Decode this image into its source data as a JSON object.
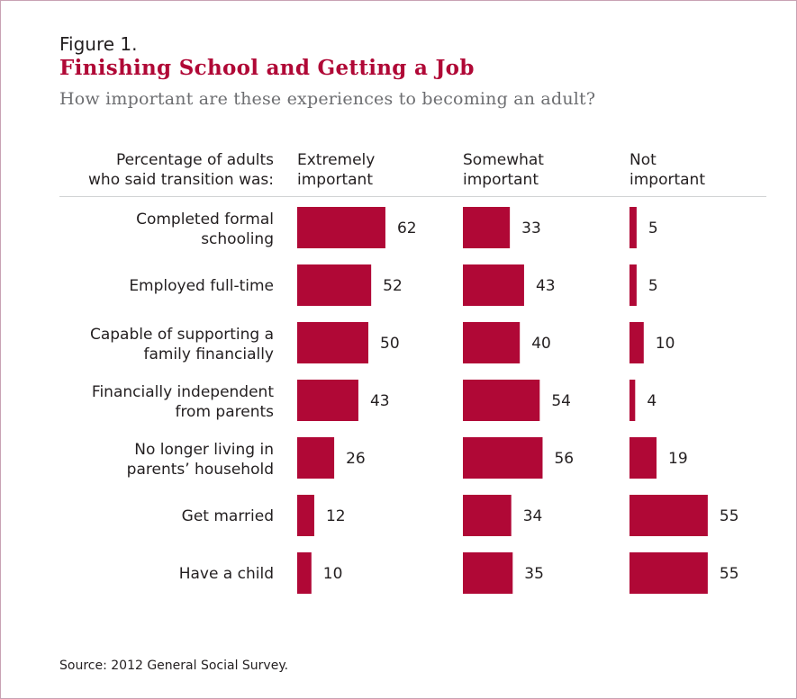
{
  "figure_label": "Figure 1.",
  "title": "Finishing School and Getting a Job",
  "subtitle": "How important are these experiences to becoming an adult?",
  "source": "Source: 2012 General Social Survey.",
  "colors": {
    "bar": "#b00836",
    "title": "#b00836",
    "rule": "#d1d3d4"
  },
  "chart_data": {
    "type": "bar",
    "orientation": "horizontal",
    "row_header": [
      "Percentage of adults",
      "who said transition was:"
    ],
    "categories": [
      [
        "Completed formal",
        "schooling"
      ],
      [
        "Employed full-time"
      ],
      [
        "Capable of supporting a",
        "family financially"
      ],
      [
        "Financially independent",
        "from parents"
      ],
      [
        "No longer living in",
        "parents’ household"
      ],
      [
        "Get married"
      ],
      [
        "Have a child"
      ]
    ],
    "series": [
      {
        "name": [
          "Extremely",
          "important"
        ],
        "values": [
          62,
          52,
          50,
          43,
          26,
          12,
          10
        ]
      },
      {
        "name": [
          "Somewhat",
          "important"
        ],
        "values": [
          33,
          43,
          40,
          54,
          56,
          34,
          35
        ]
      },
      {
        "name": [
          "Not",
          "important"
        ],
        "values": [
          5,
          5,
          10,
          4,
          19,
          55,
          55
        ]
      }
    ]
  }
}
